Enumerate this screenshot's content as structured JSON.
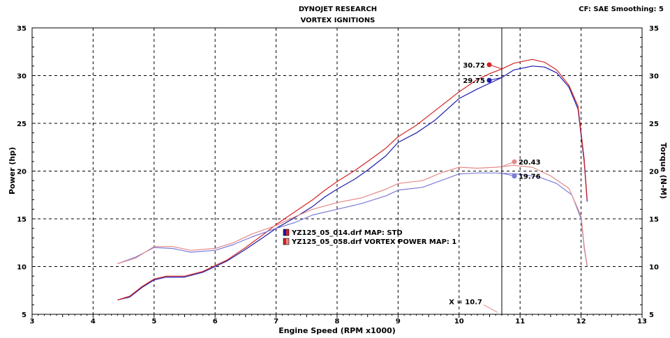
{
  "header": {
    "title": "DYNOJET RESEARCH",
    "subtitle": "VORTEX IGNITIONS",
    "settings": "CF: SAE  Smoothing: 5"
  },
  "chart_data": {
    "type": "line",
    "xlabel": "Engine Speed (RPM x1000)",
    "ylabel_left": "Power (hp)",
    "ylabel_right": "Torque (N-M)",
    "xlim": [
      3,
      13
    ],
    "ylim": [
      5,
      35
    ],
    "x_ticks": [
      "3",
      "4",
      "5",
      "6",
      "7",
      "8",
      "9",
      "10",
      "11",
      "12",
      "13"
    ],
    "y_ticks": [
      "5",
      "10",
      "15",
      "20",
      "25",
      "30",
      "35"
    ],
    "grid": true,
    "legend_position": "center-left",
    "cursor": {
      "x": 10.7,
      "label": "X = 10.7"
    },
    "series": [
      {
        "name": "YZ125_05_014.drf MAP: STD",
        "color": "#1a1aa8",
        "measure": "power",
        "readout": "29.75",
        "points": [
          [
            4.4,
            6.5
          ],
          [
            4.6,
            6.8
          ],
          [
            4.8,
            7.8
          ],
          [
            5.0,
            8.6
          ],
          [
            5.2,
            8.9
          ],
          [
            5.5,
            8.9
          ],
          [
            5.8,
            9.4
          ],
          [
            6.0,
            10.0
          ],
          [
            6.2,
            10.6
          ],
          [
            6.5,
            11.8
          ],
          [
            6.8,
            13.1
          ],
          [
            7.0,
            14.0
          ],
          [
            7.3,
            15.1
          ],
          [
            7.6,
            16.3
          ],
          [
            7.8,
            17.3
          ],
          [
            8.0,
            18.1
          ],
          [
            8.3,
            19.2
          ],
          [
            8.5,
            20.1
          ],
          [
            8.8,
            21.6
          ],
          [
            9.0,
            23.0
          ],
          [
            9.3,
            24.0
          ],
          [
            9.6,
            25.3
          ],
          [
            10.0,
            27.6
          ],
          [
            10.3,
            28.6
          ],
          [
            10.5,
            29.2
          ],
          [
            10.7,
            29.8
          ],
          [
            10.9,
            30.6
          ],
          [
            11.2,
            31.0
          ],
          [
            11.4,
            30.9
          ],
          [
            11.6,
            30.3
          ],
          [
            11.8,
            28.8
          ],
          [
            11.95,
            26.5
          ],
          [
            12.05,
            21.0
          ],
          [
            12.1,
            16.8
          ]
        ]
      },
      {
        "name": "YZ125_05_058.drf VORTEX POWER MAP: 1",
        "color": "#d42424",
        "measure": "power",
        "readout": "30.72",
        "points": [
          [
            4.4,
            6.5
          ],
          [
            4.6,
            6.9
          ],
          [
            4.8,
            7.9
          ],
          [
            5.0,
            8.7
          ],
          [
            5.2,
            9.0
          ],
          [
            5.5,
            9.0
          ],
          [
            5.8,
            9.5
          ],
          [
            6.0,
            10.1
          ],
          [
            6.2,
            10.7
          ],
          [
            6.5,
            12.0
          ],
          [
            6.8,
            13.4
          ],
          [
            7.0,
            14.4
          ],
          [
            7.3,
            15.7
          ],
          [
            7.6,
            17.0
          ],
          [
            7.8,
            18.0
          ],
          [
            8.0,
            18.9
          ],
          [
            8.3,
            20.1
          ],
          [
            8.5,
            21.0
          ],
          [
            8.8,
            22.4
          ],
          [
            9.0,
            23.6
          ],
          [
            9.3,
            24.8
          ],
          [
            9.6,
            26.3
          ],
          [
            10.0,
            28.3
          ],
          [
            10.3,
            29.6
          ],
          [
            10.5,
            30.2
          ],
          [
            10.7,
            30.7
          ],
          [
            10.9,
            31.3
          ],
          [
            11.2,
            31.7
          ],
          [
            11.4,
            31.4
          ],
          [
            11.6,
            30.6
          ],
          [
            11.8,
            29.0
          ],
          [
            11.95,
            26.8
          ],
          [
            12.05,
            21.3
          ],
          [
            12.1,
            17.0
          ]
        ]
      },
      {
        "name": "YZ125_05_014.drf MAP: STD",
        "color": "#7a7ad8",
        "measure": "torque",
        "readout": "19.76",
        "points": [
          [
            4.4,
            10.3
          ],
          [
            4.7,
            11.0
          ],
          [
            5.0,
            12.0
          ],
          [
            5.3,
            11.9
          ],
          [
            5.6,
            11.5
          ],
          [
            6.0,
            11.7
          ],
          [
            6.3,
            12.3
          ],
          [
            6.6,
            13.1
          ],
          [
            7.0,
            14.0
          ],
          [
            7.3,
            14.6
          ],
          [
            7.6,
            15.4
          ],
          [
            8.0,
            16.0
          ],
          [
            8.4,
            16.6
          ],
          [
            8.8,
            17.4
          ],
          [
            9.0,
            18.0
          ],
          [
            9.4,
            18.3
          ],
          [
            9.7,
            19.0
          ],
          [
            10.0,
            19.7
          ],
          [
            10.3,
            19.8
          ],
          [
            10.6,
            19.8
          ],
          [
            10.95,
            19.7
          ],
          [
            11.3,
            19.4
          ],
          [
            11.6,
            18.7
          ],
          [
            11.85,
            17.5
          ],
          [
            12.0,
            15.0
          ],
          [
            12.05,
            12.0
          ],
          [
            12.1,
            10.0
          ]
        ]
      },
      {
        "name": "YZ125_05_058.drf VORTEX POWER MAP: 1",
        "color": "#e48a8a",
        "measure": "torque",
        "readout": "20.43",
        "points": [
          [
            4.4,
            10.3
          ],
          [
            4.7,
            10.9
          ],
          [
            5.0,
            12.1
          ],
          [
            5.3,
            12.1
          ],
          [
            5.6,
            11.7
          ],
          [
            6.0,
            11.9
          ],
          [
            6.3,
            12.5
          ],
          [
            6.6,
            13.4
          ],
          [
            7.0,
            14.3
          ],
          [
            7.3,
            15.2
          ],
          [
            7.6,
            16.0
          ],
          [
            8.0,
            16.7
          ],
          [
            8.4,
            17.2
          ],
          [
            8.8,
            18.1
          ],
          [
            9.0,
            18.7
          ],
          [
            9.4,
            19.0
          ],
          [
            9.7,
            19.8
          ],
          [
            10.0,
            20.4
          ],
          [
            10.3,
            20.3
          ],
          [
            10.6,
            20.4
          ],
          [
            10.9,
            20.6
          ],
          [
            11.2,
            20.4
          ],
          [
            11.5,
            19.5
          ],
          [
            11.8,
            18.2
          ],
          [
            12.0,
            15.3
          ],
          [
            12.05,
            12.2
          ],
          [
            12.1,
            10.1
          ]
        ]
      }
    ]
  }
}
